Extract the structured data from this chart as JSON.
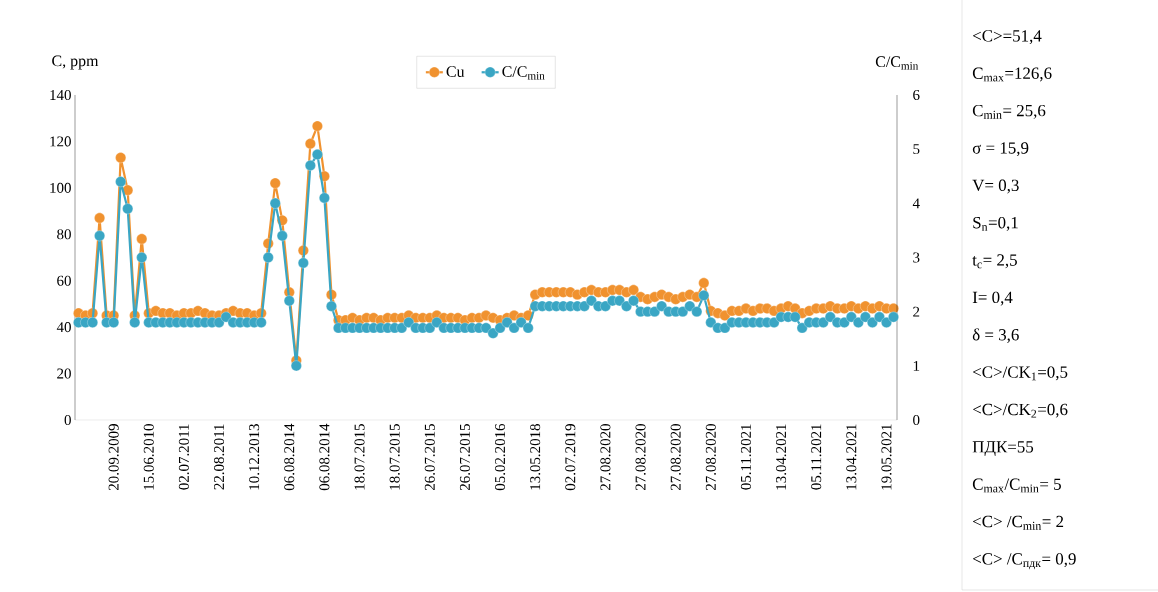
{
  "chart_data": {
    "type": "line",
    "ylabel": "C, ppm",
    "y2label": "C/C$_{min}$",
    "categories": [
      null,
      null,
      null,
      null,
      null,
      "20.09.2009",
      null,
      null,
      null,
      null,
      "15.06.2010",
      null,
      null,
      null,
      null,
      "02.07.2011",
      null,
      null,
      null,
      null,
      "22.08.2011",
      null,
      null,
      null,
      null,
      "10.12.2013",
      null,
      null,
      null,
      null,
      "06.08.2014",
      null,
      null,
      null,
      null,
      "06.08.2014",
      null,
      null,
      null,
      null,
      "18.07.2015",
      null,
      null,
      null,
      null,
      "18.07.2015",
      null,
      null,
      null,
      null,
      "26.07.2015",
      null,
      null,
      null,
      null,
      "26.07.2015",
      null,
      null,
      null,
      null,
      "05.02.2016",
      null,
      null,
      null,
      null,
      "13.05.2018",
      null,
      null,
      null,
      null,
      "02.07.2019",
      null,
      null,
      null,
      null,
      "27.08.2020",
      null,
      null,
      null,
      null,
      "27.08.2020",
      null,
      null,
      null,
      null,
      "27.08.2020",
      null,
      null,
      null,
      null,
      "27.08.2020",
      null,
      null,
      null,
      null,
      "05.11.2021",
      null,
      null,
      null,
      null,
      "13.04.2021",
      null,
      null,
      null,
      null,
      "05.11.2021",
      null,
      null,
      null,
      null,
      "13.04.2021",
      null,
      null,
      null,
      null,
      "19.05.2021",
      null
    ],
    "series": [
      {
        "name": "Cu",
        "color": "#f0922f",
        "values": [
          46,
          45,
          46,
          87,
          45,
          45,
          113,
          99,
          45,
          78,
          46,
          47,
          46,
          46,
          45,
          46,
          46,
          47,
          46,
          45,
          45,
          46,
          47,
          46,
          46,
          45,
          46,
          76,
          102,
          86,
          55,
          25.6,
          73,
          119,
          126.6,
          105,
          54,
          43,
          43,
          44,
          43,
          44,
          44,
          43,
          44,
          44,
          44,
          45,
          44,
          44,
          44,
          45,
          44,
          44,
          44,
          43,
          44,
          44,
          45,
          44,
          43,
          44,
          45,
          44,
          45,
          54,
          55,
          55,
          55,
          55,
          55,
          54,
          55,
          56,
          55,
          55,
          56,
          56,
          55,
          56,
          53,
          52,
          53,
          54,
          53,
          52,
          53,
          54,
          53,
          59,
          47,
          46,
          45,
          47,
          47,
          48,
          47,
          48,
          48,
          47,
          48,
          49,
          48,
          46,
          47,
          48,
          48,
          49,
          48,
          48,
          49,
          48,
          49,
          48,
          49,
          48,
          48
        ]
      },
      {
        "name": "C/C$_{min}$",
        "color": "#3aa6c4",
        "axis": "y2",
        "values": [
          1.8,
          1.8,
          1.8,
          3.4,
          1.8,
          1.8,
          4.4,
          3.9,
          1.8,
          3.0,
          1.8,
          1.8,
          1.8,
          1.8,
          1.8,
          1.8,
          1.8,
          1.8,
          1.8,
          1.8,
          1.8,
          1.9,
          1.8,
          1.8,
          1.8,
          1.8,
          1.8,
          3.0,
          4.0,
          3.4,
          2.2,
          1.0,
          2.9,
          4.7,
          4.9,
          4.1,
          2.1,
          1.7,
          1.7,
          1.7,
          1.7,
          1.7,
          1.7,
          1.7,
          1.7,
          1.7,
          1.7,
          1.8,
          1.7,
          1.7,
          1.7,
          1.8,
          1.7,
          1.7,
          1.7,
          1.7,
          1.7,
          1.7,
          1.7,
          1.6,
          1.7,
          1.8,
          1.7,
          1.8,
          1.7,
          2.1,
          2.1,
          2.1,
          2.1,
          2.1,
          2.1,
          2.1,
          2.1,
          2.2,
          2.1,
          2.1,
          2.2,
          2.2,
          2.1,
          2.2,
          2.0,
          2.0,
          2.0,
          2.1,
          2.0,
          2.0,
          2.0,
          2.1,
          2.0,
          2.3,
          1.8,
          1.7,
          1.7,
          1.8,
          1.8,
          1.8,
          1.8,
          1.8,
          1.8,
          1.8,
          1.9,
          1.9,
          1.9,
          1.7,
          1.8,
          1.8,
          1.8,
          1.9,
          1.8,
          1.8,
          1.9,
          1.8,
          1.9,
          1.8,
          1.9,
          1.8,
          1.9
        ]
      }
    ],
    "ylim": [
      0,
      140
    ],
    "yticks": [
      0,
      20,
      40,
      60,
      80,
      100,
      120,
      140
    ],
    "y2lim": [
      0,
      6
    ],
    "y2ticks": [
      0,
      1,
      2,
      3,
      4,
      5,
      6
    ],
    "legend": "top",
    "marker": "circle",
    "line_style": "solid",
    "grid": false,
    "annotations": [
      "<C>=51,4",
      "C$_{max}$=126,6",
      "C$_{min}$= 25,6",
      "σ = 15,9",
      "V= 0,3",
      "S$_{n}$=0,1",
      "t$_{c}$= 2,5",
      "I= 0,4",
      "δ = 3,6",
      "<C>/CK$_{1}$=0,5",
      "<C>/CK$_{2}$=0,6",
      "ПДК=55",
      "C$_{max}$/C$_{min}$= 5",
      "<C> /C$_{min}$= 2",
      "<C> /C$_{пдк}$= 0,9"
    ]
  }
}
